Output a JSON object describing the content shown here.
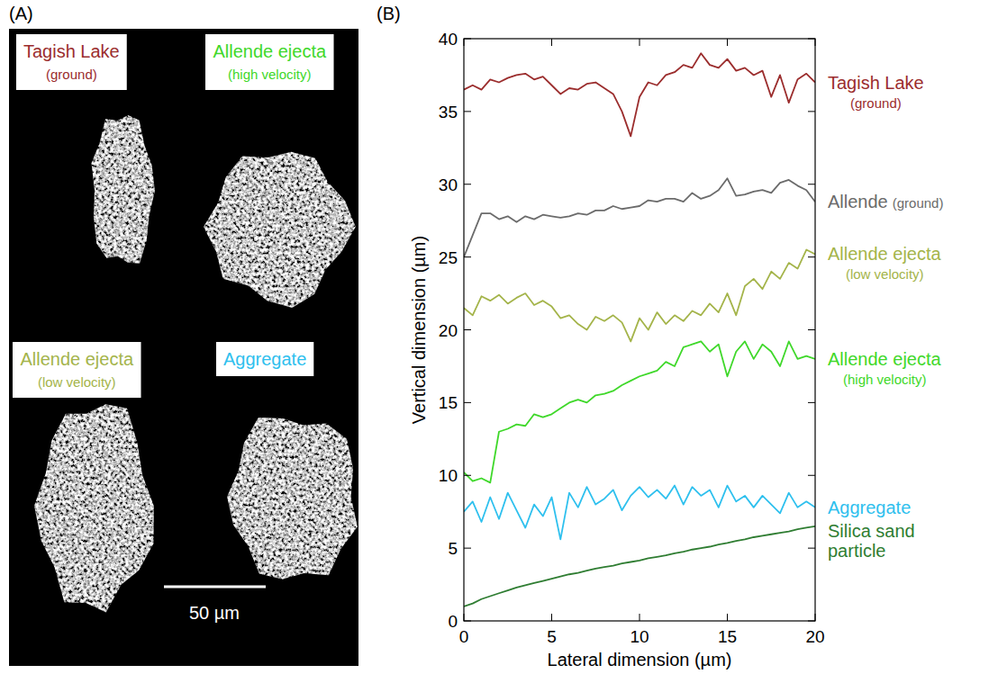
{
  "image_panel": {
    "panel": "(A)",
    "labels": [
      "Tagish Lake (ground)",
      "Allende ejecta (high velocity)",
      "Allende ejecta (low velocity)",
      "Aggregate"
    ],
    "colors": [
      "#9b2d2d",
      "#3fd82a",
      "#a4b44a",
      "#2ec0ee"
    ],
    "scale_bar": "50 µm"
  },
  "chart_data": {
    "type": "line",
    "panel": "(B)",
    "x_label": "Lateral dimension (µm)",
    "y_label": "Vertical dimension (µm)",
    "xlim": [
      0,
      20
    ],
    "xticks": [
      0,
      5,
      10,
      15,
      20
    ],
    "ylim": [
      0,
      40
    ],
    "yticks": [
      0,
      5,
      10,
      15,
      20,
      25,
      30,
      35,
      40
    ],
    "legend": "right",
    "x": [
      0,
      0.5,
      1,
      1.5,
      2,
      2.5,
      3,
      3.5,
      4,
      4.5,
      5,
      5.5,
      6,
      6.5,
      7,
      7.5,
      8,
      8.5,
      9,
      9.5,
      10,
      10.5,
      11,
      11.5,
      12,
      12.5,
      13,
      13.5,
      14,
      14.5,
      15,
      15.5,
      16,
      16.5,
      17,
      17.5,
      18,
      18.5,
      19,
      19.5,
      20
    ],
    "series": [
      {
        "name": "Tagish Lake (ground)",
        "color": "#9b2d2d",
        "values": [
          36.5,
          36.8,
          36.5,
          37.2,
          37.0,
          37.3,
          37.5,
          37.6,
          37.2,
          37.4,
          36.8,
          36.2,
          36.6,
          36.5,
          36.9,
          37.0,
          36.6,
          36.2,
          35.0,
          33.3,
          36.0,
          37.0,
          36.8,
          37.5,
          37.7,
          38.2,
          38.0,
          39.0,
          38.2,
          38.0,
          38.6,
          37.8,
          38.0,
          37.5,
          37.8,
          36.0,
          37.5,
          35.6,
          37.2,
          37.6,
          37.0
        ]
      },
      {
        "name": "Allende (ground)",
        "color": "#6b6b6b",
        "values": [
          25.0,
          26.5,
          28.0,
          28.0,
          27.6,
          27.8,
          27.4,
          27.8,
          27.6,
          27.9,
          27.8,
          27.7,
          27.8,
          28.0,
          27.9,
          28.2,
          28.2,
          28.5,
          28.3,
          28.4,
          28.5,
          28.9,
          28.8,
          29.0,
          29.0,
          28.8,
          29.4,
          29.0,
          29.2,
          29.6,
          30.4,
          29.2,
          29.3,
          29.5,
          29.6,
          29.4,
          30.1,
          30.3,
          29.9,
          29.6,
          28.8
        ]
      },
      {
        "name": "Allende ejecta (low velocity)",
        "color": "#a4b44a",
        "values": [
          21.5,
          21.0,
          22.3,
          22.0,
          22.4,
          21.8,
          22.2,
          22.5,
          21.7,
          22.0,
          21.6,
          20.8,
          21.0,
          20.4,
          20.0,
          20.9,
          20.6,
          21.0,
          20.5,
          19.2,
          20.8,
          20.0,
          21.2,
          20.4,
          21.0,
          20.6,
          21.3,
          21.0,
          21.8,
          21.2,
          22.5,
          21.0,
          23.0,
          23.5,
          22.8,
          24.0,
          23.5,
          24.6,
          24.2,
          25.5,
          25.2
        ]
      },
      {
        "name": "Allende ejecta (high velocity)",
        "color": "#3fd82a",
        "values": [
          10.2,
          9.6,
          9.8,
          9.5,
          13.0,
          13.2,
          13.5,
          13.4,
          14.2,
          14.0,
          14.2,
          14.6,
          15.0,
          15.2,
          15.0,
          15.5,
          15.6,
          15.8,
          16.2,
          16.5,
          16.8,
          17.0,
          17.2,
          17.8,
          17.5,
          18.8,
          19.0,
          19.2,
          18.5,
          19.0,
          16.8,
          18.5,
          19.2,
          18.0,
          19.0,
          18.5,
          17.5,
          19.2,
          18.0,
          18.2,
          18.0
        ]
      },
      {
        "name": "Aggregate",
        "color": "#2ec0ee",
        "values": [
          7.5,
          8.2,
          6.8,
          8.5,
          7.0,
          8.8,
          7.6,
          6.4,
          8.0,
          7.2,
          8.5,
          5.6,
          8.8,
          7.8,
          9.2,
          8.0,
          8.4,
          9.0,
          7.6,
          8.6,
          9.2,
          8.5,
          9.0,
          8.4,
          9.3,
          8.0,
          9.2,
          8.6,
          9.0,
          7.8,
          9.3,
          8.2,
          8.6,
          7.8,
          8.6,
          8.0,
          7.4,
          8.8,
          7.8,
          8.2,
          7.8
        ]
      },
      {
        "name": "Silica sand particle",
        "color": "#2f7d32",
        "values": [
          1.0,
          1.2,
          1.5,
          1.7,
          1.9,
          2.1,
          2.3,
          2.45,
          2.6,
          2.75,
          2.9,
          3.05,
          3.2,
          3.3,
          3.45,
          3.6,
          3.7,
          3.8,
          3.95,
          4.05,
          4.15,
          4.3,
          4.4,
          4.5,
          4.65,
          4.75,
          4.9,
          5.0,
          5.1,
          5.25,
          5.35,
          5.5,
          5.6,
          5.75,
          5.85,
          5.95,
          6.05,
          6.15,
          6.3,
          6.4,
          6.5
        ]
      }
    ]
  }
}
